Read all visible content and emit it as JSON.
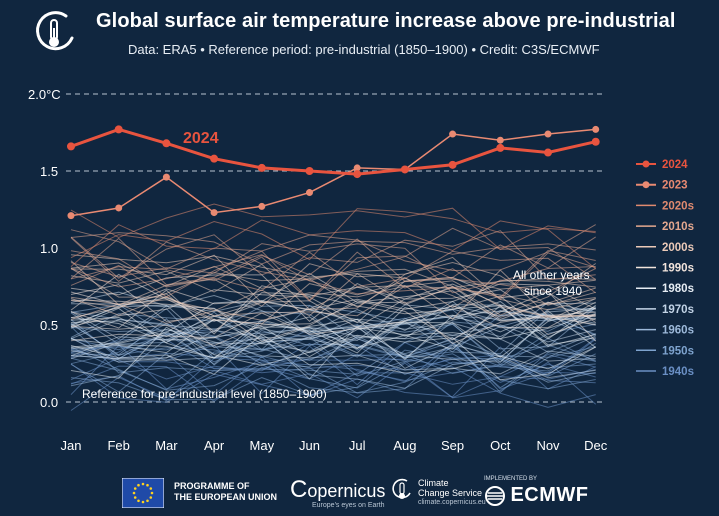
{
  "header": {
    "title": "Global surface air temperature increase above pre-industrial",
    "subtitle": "Data: ERA5 • Reference period: pre-industrial (1850–1900) • Credit: C3S/ECMWF",
    "logo_icon": "thermometer-globe-icon"
  },
  "chart_data": {
    "type": "line",
    "categories": [
      "Jan",
      "Feb",
      "Mar",
      "Apr",
      "May",
      "Jun",
      "Jul",
      "Aug",
      "Sep",
      "Oct",
      "Nov",
      "Dec"
    ],
    "y_ticks": [
      "2.0°C",
      "1.5",
      "1.0",
      "0.5",
      "0.0"
    ],
    "ylim": [
      -0.1,
      2.1
    ],
    "grid": "dashed at 0.0, 1.5 and 2.0",
    "series": [
      {
        "name": "2024",
        "color": "#e8543f",
        "values": [
          1.66,
          1.77,
          1.68,
          1.58,
          1.52,
          1.5,
          1.48,
          1.51,
          1.54,
          1.65,
          1.62,
          1.69
        ]
      },
      {
        "name": "2023",
        "color": "#e98a72",
        "values": [
          1.21,
          1.26,
          1.46,
          1.23,
          1.27,
          1.36,
          1.52,
          1.51,
          1.74,
          1.7,
          1.74,
          1.77
        ]
      }
    ],
    "series_annotation": "2024",
    "background_years_label": "All other years\nsince 1940",
    "reference_label": "Reference for pre-industrial level (1850–1900)",
    "legend_placement": "right",
    "legend": [
      {
        "label": "2024",
        "color": "#e8543f",
        "marker": true
      },
      {
        "label": "2023",
        "color": "#e98a72",
        "marker": true
      },
      {
        "label": "2020s",
        "color": "#e08a6f",
        "marker": false
      },
      {
        "label": "2010s",
        "color": "#e4a88f",
        "marker": false
      },
      {
        "label": "2000s",
        "color": "#eccab8",
        "marker": false
      },
      {
        "label": "1990s",
        "color": "#f2e4dc",
        "marker": false
      },
      {
        "label": "1980s",
        "color": "#e6ecf3",
        "marker": false
      },
      {
        "label": "1970s",
        "color": "#c2d3e6",
        "marker": false
      },
      {
        "label": "1960s",
        "color": "#9db9da",
        "marker": false
      },
      {
        "label": "1950s",
        "color": "#7ea3ce",
        "marker": false
      },
      {
        "label": "1940s",
        "color": "#6a8fc4",
        "marker": false
      }
    ]
  },
  "footer": {
    "eu_line1": "PROGRAMME OF",
    "eu_line2": "THE EUROPEAN UNION",
    "copernicus": "opernicus",
    "copernicus_tagline": "Europe's eyes on Earth",
    "c3s_line1": "Climate",
    "c3s_line2": "Change Service",
    "c3s_url": "climate.copernicus.eu",
    "implemented_by": "IMPLEMENTED BY",
    "ecmwf": "ECMWF"
  }
}
